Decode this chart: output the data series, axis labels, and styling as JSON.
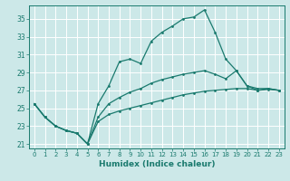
{
  "xlabel": "Humidex (Indice chaleur)",
  "bg_color": "#cce8e8",
  "grid_color": "#ffffff",
  "line_color": "#1a7a6e",
  "xlim": [
    -0.5,
    23.5
  ],
  "ylim": [
    20.5,
    36.5
  ],
  "xticks": [
    0,
    1,
    2,
    3,
    4,
    5,
    6,
    7,
    8,
    9,
    10,
    11,
    12,
    13,
    14,
    15,
    16,
    17,
    18,
    19,
    20,
    21,
    22,
    23
  ],
  "yticks": [
    21,
    23,
    25,
    27,
    29,
    31,
    33,
    35
  ],
  "series1": [
    [
      0,
      25.5
    ],
    [
      1,
      24.0
    ],
    [
      2,
      23.0
    ],
    [
      3,
      22.5
    ],
    [
      4,
      22.2
    ],
    [
      5,
      21.0
    ],
    [
      6,
      25.5
    ],
    [
      7,
      27.5
    ],
    [
      8,
      30.2
    ],
    [
      9,
      30.5
    ],
    [
      10,
      30.0
    ],
    [
      11,
      32.5
    ],
    [
      12,
      33.5
    ],
    [
      13,
      34.2
    ],
    [
      14,
      35.0
    ],
    [
      15,
      35.2
    ],
    [
      16,
      36.0
    ],
    [
      17,
      33.5
    ],
    [
      18,
      30.5
    ],
    [
      19,
      29.2
    ],
    [
      20,
      27.5
    ],
    [
      21,
      27.0
    ],
    [
      22,
      27.2
    ],
    [
      23,
      27.0
    ]
  ],
  "series2": [
    [
      0,
      25.5
    ],
    [
      1,
      24.0
    ],
    [
      2,
      23.0
    ],
    [
      3,
      22.5
    ],
    [
      4,
      22.2
    ],
    [
      5,
      21.0
    ],
    [
      6,
      24.0
    ],
    [
      7,
      25.5
    ],
    [
      8,
      26.2
    ],
    [
      9,
      26.8
    ],
    [
      10,
      27.2
    ],
    [
      11,
      27.8
    ],
    [
      12,
      28.2
    ],
    [
      13,
      28.5
    ],
    [
      14,
      28.8
    ],
    [
      15,
      29.0
    ],
    [
      16,
      29.2
    ],
    [
      17,
      28.8
    ],
    [
      18,
      28.3
    ],
    [
      19,
      29.2
    ],
    [
      20,
      27.5
    ],
    [
      21,
      27.2
    ],
    [
      22,
      27.2
    ],
    [
      23,
      27.0
    ]
  ],
  "series3": [
    [
      0,
      25.5
    ],
    [
      1,
      24.0
    ],
    [
      2,
      23.0
    ],
    [
      3,
      22.5
    ],
    [
      4,
      22.2
    ],
    [
      5,
      21.0
    ],
    [
      6,
      23.5
    ],
    [
      7,
      24.3
    ],
    [
      8,
      24.7
    ],
    [
      9,
      25.0
    ],
    [
      10,
      25.3
    ],
    [
      11,
      25.6
    ],
    [
      12,
      25.9
    ],
    [
      13,
      26.2
    ],
    [
      14,
      26.5
    ],
    [
      15,
      26.7
    ],
    [
      16,
      26.9
    ],
    [
      17,
      27.0
    ],
    [
      18,
      27.1
    ],
    [
      19,
      27.2
    ],
    [
      20,
      27.2
    ],
    [
      21,
      27.0
    ],
    [
      22,
      27.1
    ],
    [
      23,
      27.0
    ]
  ]
}
